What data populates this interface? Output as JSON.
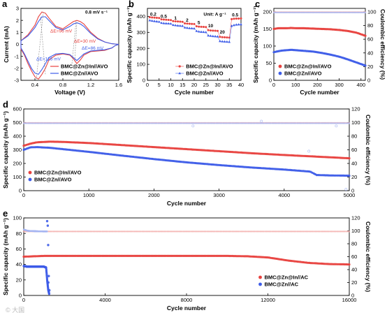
{
  "colors": {
    "red": "#e8413e",
    "blue": "#3d5ce8",
    "pale_red": "#f3a9a6",
    "pale_blue": "#a8b7f2"
  },
  "watermark": "© 大国",
  "chart_data": [
    {
      "id": "a",
      "panel_label": "a",
      "type": "line",
      "xlabel": "Voltage (V)",
      "ylabel": "Current (mA)",
      "xlim": [
        0.2,
        1.6
      ],
      "ylim": [
        -3,
        3
      ],
      "xticks": [
        0.4,
        0.8,
        1.2,
        1.6
      ],
      "yticks": [
        -3,
        -2,
        -1,
        0,
        1,
        2,
        3
      ],
      "annotations": [
        {
          "text": "0.8 mV s⁻¹",
          "x": 1.12,
          "y": 2.55,
          "color": "#000000",
          "bold": true
        },
        {
          "text": "ΔE=96 mV",
          "x": 0.62,
          "y": 1.0,
          "color": "#e8413e"
        },
        {
          "text": "ΔE=30 mV",
          "x": 0.96,
          "y": 0.15,
          "color": "#e8413e"
        },
        {
          "text": "ΔE=86 mV",
          "x": 1.07,
          "y": -0.45,
          "color": "#3d5ce8"
        },
        {
          "text": "ΔE=126 mV",
          "x": 0.42,
          "y": -1.35,
          "color": "#3d5ce8"
        }
      ],
      "series": [
        {
          "name": "BMC@Zn@In//AVO",
          "color": "#e8413e",
          "x": [
            0.2,
            0.3,
            0.4,
            0.45,
            0.5,
            0.55,
            0.6,
            0.7,
            0.8,
            0.85,
            0.9,
            0.95,
            1.0,
            1.05,
            1.1,
            1.2,
            1.3,
            1.4,
            1.5,
            1.6,
            1.55,
            1.5,
            1.4,
            1.3,
            1.2,
            1.1,
            1.05,
            1.0,
            0.95,
            0.9,
            0.8,
            0.7,
            0.6,
            0.55,
            0.5,
            0.45,
            0.4,
            0.35,
            0.3,
            0.25,
            0.2
          ],
          "y": [
            0.3,
            0.8,
            1.6,
            2.3,
            2.7,
            2.6,
            2.2,
            1.5,
            1.3,
            1.5,
            1.7,
            1.9,
            2.0,
            1.9,
            1.7,
            1.0,
            0.5,
            0.2,
            0.05,
            0.0,
            -0.1,
            -0.3,
            -0.5,
            -0.55,
            -0.6,
            -0.9,
            -1.3,
            -1.6,
            -1.2,
            -0.9,
            -0.8,
            -0.9,
            -1.3,
            -2.0,
            -2.5,
            -2.9,
            -2.7,
            -2.2,
            -1.6,
            -0.9,
            -0.4
          ]
        },
        {
          "name": "BMC@Zn//AVO",
          "color": "#3d5ce8",
          "x": [
            0.2,
            0.3,
            0.4,
            0.45,
            0.5,
            0.55,
            0.6,
            0.7,
            0.8,
            0.9,
            0.95,
            1.0,
            1.05,
            1.1,
            1.2,
            1.3,
            1.4,
            1.5,
            1.6,
            1.55,
            1.5,
            1.4,
            1.3,
            1.2,
            1.1,
            1.0,
            0.95,
            0.9,
            0.8,
            0.7,
            0.6,
            0.55,
            0.5,
            0.45,
            0.4,
            0.35,
            0.3,
            0.25,
            0.2
          ],
          "y": [
            0.3,
            0.7,
            1.4,
            1.9,
            2.3,
            2.3,
            2.0,
            1.4,
            1.2,
            1.5,
            1.7,
            1.8,
            1.7,
            1.5,
            0.9,
            0.45,
            0.2,
            0.05,
            0.0,
            -0.1,
            -0.3,
            -0.45,
            -0.5,
            -0.55,
            -0.8,
            -1.35,
            -1.1,
            -0.85,
            -0.75,
            -0.8,
            -1.1,
            -1.6,
            -2.1,
            -2.5,
            -2.4,
            -2.0,
            -1.4,
            -0.8,
            -0.3
          ]
        }
      ],
      "legend": {
        "position": "bottom-right",
        "entries": [
          "BMC@Zn@In//AVO",
          "BMC@Zn//AVO"
        ]
      }
    },
    {
      "id": "b",
      "panel_label": "b",
      "type": "scatter",
      "xlabel": "Cycle number",
      "ylabel": "Specific capacity (mAh g⁻¹)",
      "xlim": [
        0,
        40
      ],
      "ylim": [
        0,
        450
      ],
      "xticks": [
        0,
        5,
        10,
        15,
        20,
        25,
        30,
        35,
        40
      ],
      "yticks": [
        0,
        100,
        200,
        300,
        400
      ],
      "unit_text": "Unit: A g⁻¹",
      "rate_labels": [
        {
          "text": "0.2",
          "x": 2.5,
          "y": 405
        },
        {
          "text": "0.5",
          "x": 7,
          "y": 392
        },
        {
          "text": "1",
          "x": 12,
          "y": 380
        },
        {
          "text": "2",
          "x": 17,
          "y": 368
        },
        {
          "text": "5",
          "x": 22,
          "y": 352
        },
        {
          "text": "10",
          "x": 27,
          "y": 332
        },
        {
          "text": "20",
          "x": 32,
          "y": 292
        },
        {
          "text": "0.5",
          "x": 37.5,
          "y": 400
        }
      ],
      "series": [
        {
          "name": "BMC@Zn@In//AVO",
          "color": "#e8413e",
          "marker": "circle",
          "x": [
            1,
            2,
            3,
            4,
            5,
            6,
            7,
            8,
            9,
            10,
            11,
            12,
            13,
            14,
            15,
            16,
            17,
            18,
            19,
            20,
            21,
            22,
            23,
            24,
            25,
            26,
            27,
            28,
            29,
            30,
            31,
            32,
            33,
            34,
            35,
            36,
            37,
            38,
            39,
            40
          ],
          "y": [
            395,
            393,
            392,
            391,
            390,
            381,
            380,
            379,
            378,
            377,
            370,
            369,
            368,
            367,
            366,
            356,
            355,
            354,
            353,
            352,
            338,
            336,
            335,
            334,
            333,
            314,
            312,
            311,
            310,
            309,
            272,
            270,
            269,
            268,
            267,
            383,
            385,
            386,
            386,
            387
          ]
        },
        {
          "name": "BMC@Zn//AVO",
          "color": "#3d5ce8",
          "marker": "triangle",
          "x": [
            1,
            2,
            3,
            4,
            5,
            6,
            7,
            8,
            9,
            10,
            11,
            12,
            13,
            14,
            15,
            16,
            17,
            18,
            19,
            20,
            21,
            22,
            23,
            24,
            25,
            26,
            27,
            28,
            29,
            30,
            31,
            32,
            33,
            34,
            35,
            36,
            37,
            38,
            39,
            40
          ],
          "y": [
            375,
            372,
            370,
            368,
            366,
            359,
            357,
            356,
            355,
            354,
            346,
            344,
            342,
            341,
            340,
            330,
            328,
            326,
            325,
            324,
            308,
            305,
            303,
            302,
            301,
            280,
            278,
            276,
            275,
            274,
            245,
            243,
            242,
            241,
            240,
            340,
            345,
            348,
            349,
            350
          ]
        }
      ],
      "legend": {
        "position": "bottom-right",
        "entries": [
          "BMC@Zn@In//AVO",
          "BMC@Zn//AVO"
        ]
      }
    },
    {
      "id": "c",
      "panel_label": "c",
      "type": "scatter",
      "xlabel": "Cycle number",
      "ylabel": "Specific capacity (mAh g⁻¹)",
      "y2label": "Coulombic efficiency (%)",
      "xlim": [
        0,
        420
      ],
      "ylim": [
        0,
        210
      ],
      "y2lim": [
        0,
        105
      ],
      "xticks": [
        0,
        100,
        200,
        300,
        400
      ],
      "yticks": [
        0,
        50,
        100,
        150,
        200
      ],
      "y2ticks": [
        0,
        20,
        40,
        60,
        80,
        100
      ],
      "series": [
        {
          "name": "BMC@Zn@In//AVO",
          "color": "#e8413e",
          "role": "capacity",
          "x": [
            0,
            20,
            40,
            60,
            80,
            100,
            140,
            180,
            220,
            260,
            300,
            340,
            380,
            420
          ],
          "y": [
            150,
            152,
            152,
            152,
            153,
            152,
            152,
            151,
            150,
            149,
            147,
            144,
            139,
            130
          ]
        },
        {
          "name": "BMC@Zn//AVO",
          "color": "#3d5ce8",
          "role": "capacity",
          "x": [
            0,
            20,
            40,
            60,
            80,
            100,
            140,
            180,
            220,
            260,
            300,
            340,
            380,
            420
          ],
          "y": [
            82,
            85,
            87,
            88,
            89,
            88,
            86,
            84,
            80,
            75,
            69,
            61,
            52,
            43
          ]
        },
        {
          "name": "CE BMC@Zn@In//AVO",
          "color": "#f3a9a6",
          "role": "ce",
          "x": [
            0,
            420
          ],
          "y": [
            99.5,
            99.5
          ]
        },
        {
          "name": "CE BMC@Zn//AVO",
          "color": "#a8b7f2",
          "role": "ce",
          "x": [
            0,
            420
          ],
          "y": [
            99,
            99
          ]
        }
      ],
      "legend": {
        "position": "bottom-left",
        "entries": [
          "BMC@Zn@In//AVO",
          "BMC@Zn//AVO"
        ]
      }
    },
    {
      "id": "d",
      "panel_label": "d",
      "type": "scatter",
      "xlabel": "Cycle number",
      "ylabel": "Specific capacity (mAh g⁻¹)",
      "y2label": "Coulombic efficiency (%)",
      "xlim": [
        0,
        5000
      ],
      "ylim": [
        0,
        600
      ],
      "y2lim": [
        0,
        120
      ],
      "xticks": [
        0,
        1000,
        2000,
        3000,
        4000,
        5000
      ],
      "yticks": [
        0,
        100,
        200,
        300,
        400,
        500,
        600
      ],
      "y2ticks": [
        0,
        20,
        40,
        60,
        80,
        100,
        120
      ],
      "series": [
        {
          "name": "BMC@Zn@In//AVO",
          "color": "#e8413e",
          "role": "capacity",
          "x": [
            0,
            100,
            200,
            400,
            600,
            1000,
            1500,
            2000,
            2500,
            3000,
            3500,
            4000,
            4500,
            5000
          ],
          "y": [
            330,
            345,
            355,
            360,
            358,
            350,
            335,
            320,
            305,
            290,
            275,
            262,
            250,
            238
          ]
        },
        {
          "name": "BMC@Zn//AVO",
          "color": "#3d5ce8",
          "role": "capacity",
          "x": [
            0,
            100,
            200,
            400,
            600,
            1000,
            1500,
            2000,
            2500,
            3000,
            3500,
            4000,
            4400,
            4500,
            4700,
            5000
          ],
          "y": [
            300,
            318,
            320,
            315,
            305,
            285,
            258,
            232,
            208,
            188,
            170,
            155,
            140,
            115,
            112,
            110
          ]
        },
        {
          "name": "CE BMC@Zn@In//AVO",
          "color": "#f3a9a6",
          "role": "ce",
          "x": [
            0,
            5000
          ],
          "y": [
            99.5,
            99.5
          ]
        },
        {
          "name": "CE BMC@Zn//AVO",
          "color": "#a8b7f2",
          "role": "ce",
          "x": [
            0,
            5000
          ],
          "y": [
            99,
            99
          ]
        }
      ],
      "legend": {
        "position": "bottom-left",
        "entries": [
          "BMC@Zn@In//AVO",
          "BMC@Zn//AVO"
        ]
      }
    },
    {
      "id": "e",
      "panel_label": "e",
      "type": "scatter",
      "xlabel": "Cycle number",
      "ylabel": "Specific capacity (mAh g⁻¹)",
      "y2label": "Coulombic efficiency (%)",
      "xlim": [
        0,
        16000
      ],
      "ylim": [
        0,
        100
      ],
      "y2lim": [
        0,
        120
      ],
      "xticks": [
        0,
        4000,
        8000,
        12000,
        16000
      ],
      "yticks": [
        0,
        20,
        40,
        60,
        80,
        100
      ],
      "y2ticks": [
        0,
        20,
        40,
        60,
        80,
        100,
        120
      ],
      "series": [
        {
          "name": "BMC@Zn@In//AC",
          "color": "#e8413e",
          "role": "capacity",
          "x": [
            0,
            1000,
            2000,
            4000,
            6000,
            8000,
            10000,
            11000,
            12000,
            13000,
            14000,
            15000,
            16000
          ],
          "y": [
            50,
            51,
            51,
            51,
            51,
            51,
            51,
            50.5,
            49,
            45,
            42,
            40.5,
            40
          ]
        },
        {
          "name": "BMC@Zn//AC",
          "color": "#3d5ce8",
          "role": "capacity",
          "x": [
            0,
            200,
            500,
            800,
            1000,
            1100,
            1150,
            1200,
            1250
          ],
          "y": [
            38,
            37,
            37,
            37,
            37,
            36,
            20,
            8,
            2
          ]
        },
        {
          "name": "CE BMC@Zn@In//AC",
          "color": "#f3a9a6",
          "role": "ce",
          "x": [
            0,
            16000
          ],
          "y": [
            99,
            99
          ]
        },
        {
          "name": "CE BMC@Zn//AC",
          "color": "#a8b7f2",
          "role": "ce",
          "x": [
            0,
            200,
            500,
            1000,
            1150
          ],
          "y": [
            102,
            100,
            99.5,
            99,
            99
          ]
        }
      ],
      "legend": {
        "position": "bottom-right",
        "entries": [
          "BMC@Zn@In//AC",
          "BMC@Zn//AC"
        ]
      }
    }
  ]
}
